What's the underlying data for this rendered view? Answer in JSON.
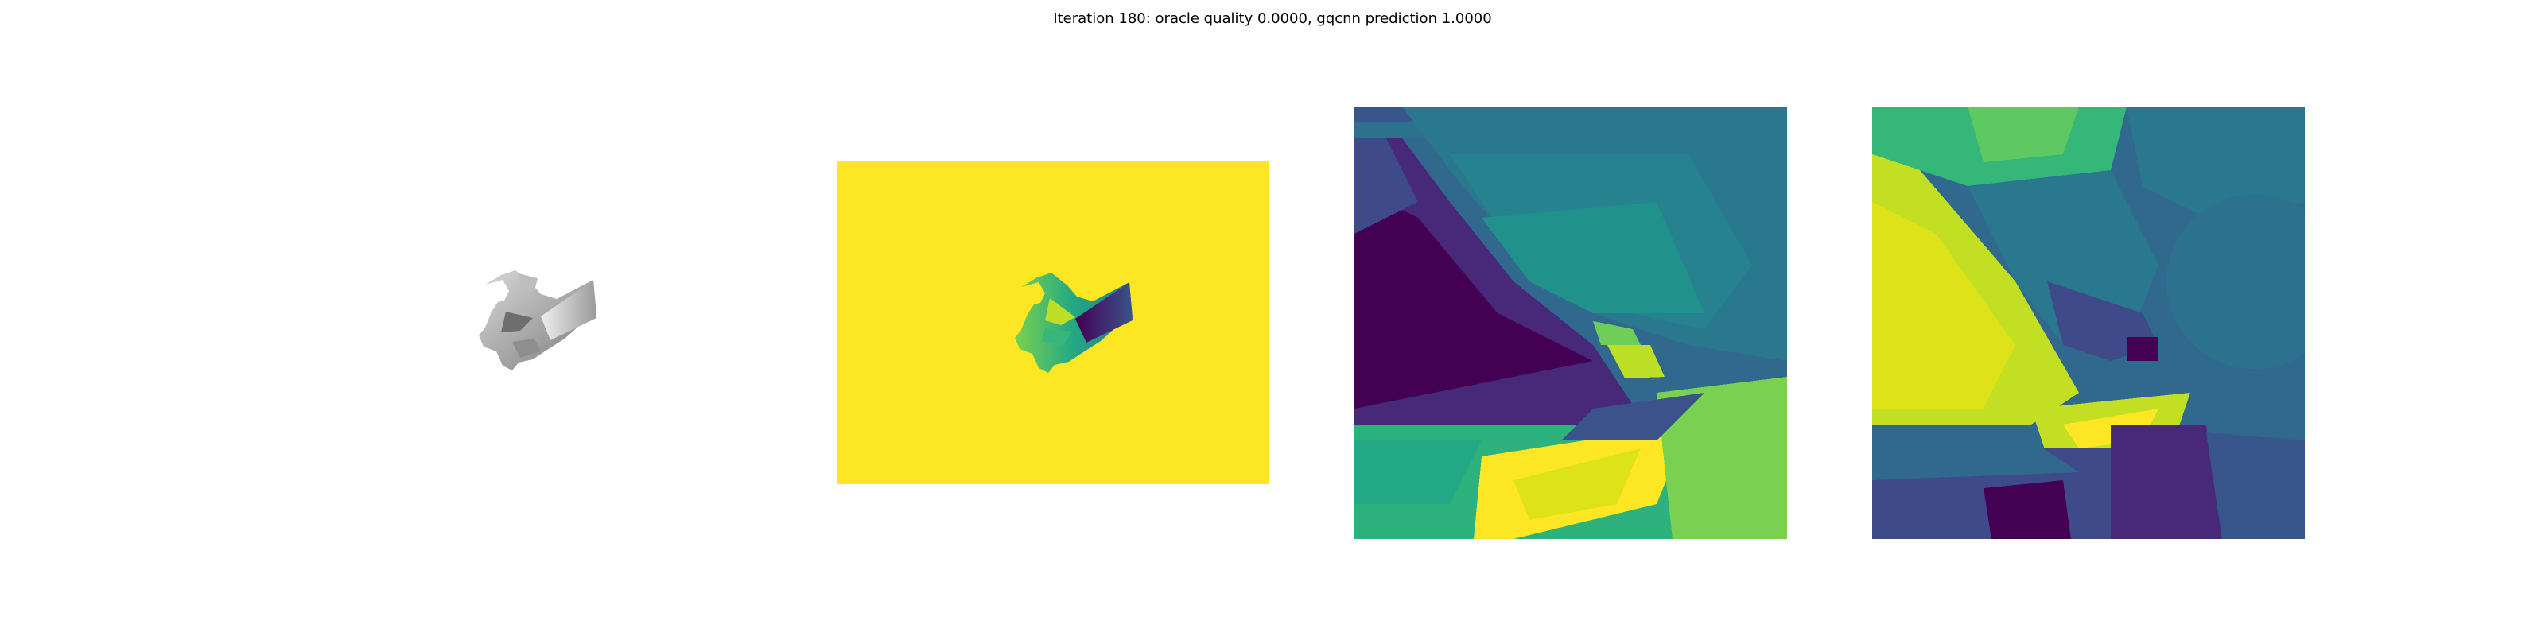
{
  "figure": {
    "title": "Iteration 180: oracle quality 0.0000, gqcnn prediction 1.0000"
  },
  "panels": [
    {
      "name": "grayscale-render"
    },
    {
      "name": "depth-image"
    },
    {
      "name": "depth-crop-1"
    },
    {
      "name": "depth-crop-2"
    }
  ],
  "colors": {
    "background": "#ffffff",
    "viridis_yellow": "#fde725",
    "viridis_purple": "#440154",
    "viridis_teal": "#21918c",
    "viridis_blue": "#31688e",
    "viridis_green": "#5ec962"
  }
}
